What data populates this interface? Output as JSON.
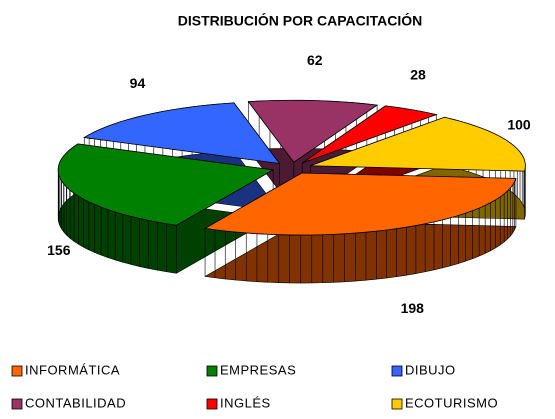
{
  "chart_data": {
    "type": "pie3d",
    "title": "DISTRIBUCIÓN POR CAPACITACIÓN",
    "categories": [
      "INFORMÁTICA",
      "EMPRESAS",
      "DIBUJO",
      "CONTABILIDAD",
      "INGLÉS",
      "ECOTURISMO"
    ],
    "values": [
      198,
      156,
      94,
      62,
      28,
      100
    ],
    "colors": [
      "#ff6600",
      "#008000",
      "#3366ff",
      "#993366",
      "#ff0000",
      "#ffcc00"
    ]
  }
}
